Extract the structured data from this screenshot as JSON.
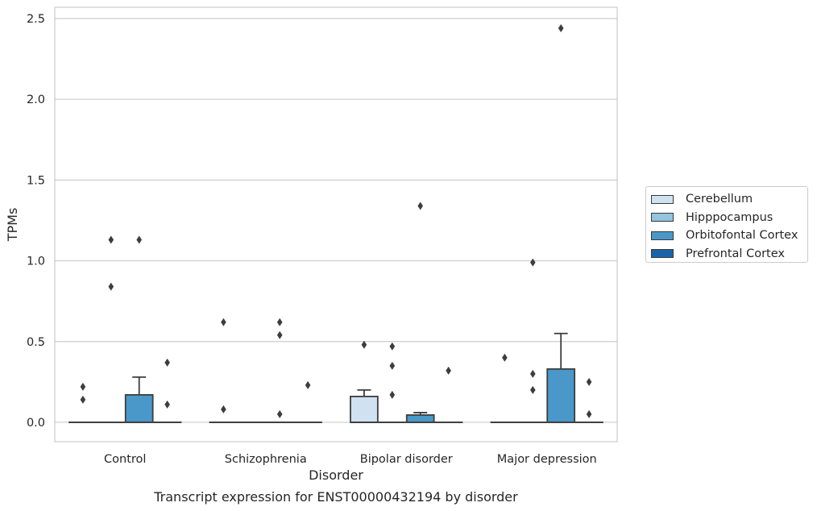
{
  "chart_data": {
    "type": "box",
    "xlabel": "Disorder",
    "ylabel": "TPMs",
    "caption": "Transcript expression for ENST00000432194 by disorder",
    "categories": [
      "Control",
      "Schizophrenia",
      "Bipolar disorder",
      "Major depression"
    ],
    "ylim": [
      -0.12,
      2.57
    ],
    "yticks": [
      0.0,
      0.5,
      1.0,
      1.5,
      2.0,
      2.5
    ],
    "ytick_labels": [
      "0.0",
      "0.5",
      "1.0",
      "1.5",
      "2.0",
      "2.5"
    ],
    "grid": true,
    "legend_position": "right",
    "series": [
      {
        "name": "Cerebellum",
        "color": "#d0e1f2",
        "boxes": [
          {
            "q1": 0,
            "median": 0,
            "q3": 0,
            "whisker_low": 0,
            "whisker_high": 0,
            "outliers": [
              0.14,
              0.22
            ]
          },
          {
            "q1": 0,
            "median": 0,
            "q3": 0,
            "whisker_low": 0,
            "whisker_high": 0,
            "outliers": [
              0.08,
              0.62
            ]
          },
          {
            "q1": 0,
            "median": 0,
            "q3": 0.16,
            "whisker_low": 0,
            "whisker_high": 0.2,
            "outliers": [
              0.48
            ]
          },
          {
            "q1": 0,
            "median": 0,
            "q3": 0,
            "whisker_low": 0,
            "whisker_high": 0,
            "outliers": [
              0.4
            ]
          }
        ]
      },
      {
        "name": "Hipppocampus",
        "color": "#94c4df",
        "boxes": [
          {
            "q1": 0,
            "median": 0,
            "q3": 0,
            "whisker_low": 0,
            "whisker_high": 0,
            "outliers": [
              0.84,
              1.13
            ]
          },
          {
            "q1": 0,
            "median": 0,
            "q3": 0,
            "whisker_low": 0,
            "whisker_high": 0,
            "outliers": []
          },
          {
            "q1": 0,
            "median": 0,
            "q3": 0,
            "whisker_low": 0,
            "whisker_high": 0,
            "outliers": [
              0.17,
              0.35,
              0.47
            ]
          },
          {
            "q1": 0,
            "median": 0,
            "q3": 0,
            "whisker_low": 0,
            "whisker_high": 0,
            "outliers": [
              0.2,
              0.3,
              0.99
            ]
          }
        ]
      },
      {
        "name": "Orbitofontal Cortex",
        "color": "#4a98c9",
        "boxes": [
          {
            "q1": 0,
            "median": 0,
            "q3": 0.17,
            "whisker_low": 0,
            "whisker_high": 0.28,
            "outliers": [
              1.13
            ]
          },
          {
            "q1": 0,
            "median": 0,
            "q3": 0,
            "whisker_low": 0,
            "whisker_high": 0,
            "outliers": [
              0.05,
              0.54,
              0.62
            ]
          },
          {
            "q1": 0,
            "median": 0,
            "q3": 0.045,
            "whisker_low": 0,
            "whisker_high": 0.06,
            "outliers": [
              1.34
            ]
          },
          {
            "q1": 0,
            "median": 0,
            "q3": 0.33,
            "whisker_low": 0,
            "whisker_high": 0.55,
            "outliers": [
              2.44
            ]
          }
        ]
      },
      {
        "name": "Prefrontal Cortex",
        "color": "#1764ab",
        "boxes": [
          {
            "q1": 0,
            "median": 0,
            "q3": 0,
            "whisker_low": 0,
            "whisker_high": 0,
            "outliers": [
              0.11,
              0.37
            ]
          },
          {
            "q1": 0,
            "median": 0,
            "q3": 0,
            "whisker_low": 0,
            "whisker_high": 0,
            "outliers": [
              0.23
            ]
          },
          {
            "q1": 0,
            "median": 0,
            "q3": 0,
            "whisker_low": 0,
            "whisker_high": 0,
            "outliers": [
              0.32
            ]
          },
          {
            "q1": 0,
            "median": 0,
            "q3": 0,
            "whisker_low": 0,
            "whisker_high": 0,
            "outliers": [
              0.05,
              0.25
            ]
          }
        ]
      }
    ]
  }
}
